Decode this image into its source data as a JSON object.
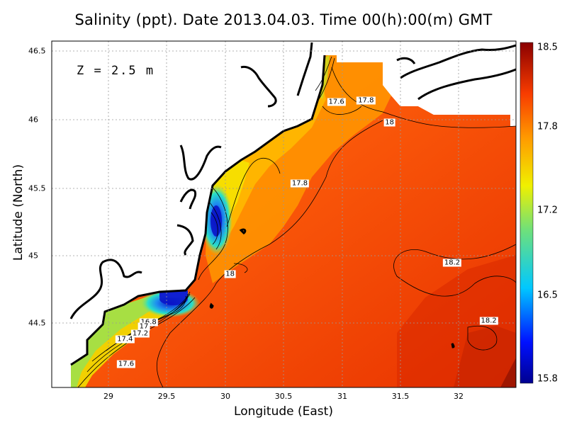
{
  "title": "Salinity (ppt). Date 2013.04.03. Time 00(h):00(m) GMT",
  "depth_label": "Z = 2.5 m",
  "colors": {
    "high": "#e83200",
    "mid": "#ff7a00",
    "low_green": "#7ddc5c",
    "low_blue": "#0a14c8",
    "land": "#ffffff",
    "coast": "#000000",
    "grid": "#b4b4b4"
  },
  "chart_data": {
    "type": "heatmap",
    "title": "Salinity (ppt). Date 2013.04.03. Time 00(h):00(m) GMT",
    "xlabel": "Longitude (East)",
    "ylabel": "Latitude (North)",
    "xlim": [
      28.55,
      32.48
    ],
    "ylim": [
      44.05,
      46.55
    ],
    "x_ticks": [
      "29",
      "29.5",
      "30",
      "30.5",
      "31",
      "31.5",
      "32"
    ],
    "y_ticks": [
      "44.5",
      "45",
      "45.5",
      "46",
      "46.5"
    ],
    "colorbar": {
      "min": 15.8,
      "max": 18.5,
      "ticks": [
        "15.8",
        "16.5",
        "17.2",
        "17.8",
        "18.5"
      ]
    },
    "grid": true,
    "contour_labels": [
      {
        "text": "17.6",
        "lon": 30.96,
        "lat": 46.11
      },
      {
        "text": "17.8",
        "lon": 31.21,
        "lat": 46.12
      },
      {
        "text": "18",
        "lon": 31.41,
        "lat": 45.96
      },
      {
        "text": "17.8",
        "lon": 30.65,
        "lat": 45.52
      },
      {
        "text": "18",
        "lon": 30.06,
        "lat": 44.87
      },
      {
        "text": "18.2",
        "lon": 31.94,
        "lat": 44.95
      },
      {
        "text": "18.2",
        "lon": 32.25,
        "lat": 44.53
      },
      {
        "text": "16.8",
        "lon": 29.37,
        "lat": 44.52
      },
      {
        "text": "17",
        "lon": 29.33,
        "lat": 44.49
      },
      {
        "text": "17.2",
        "lon": 29.3,
        "lat": 44.44
      },
      {
        "text": "17.4",
        "lon": 29.17,
        "lat": 44.4
      },
      {
        "text": "17.6",
        "lon": 29.18,
        "lat": 44.22
      }
    ]
  }
}
